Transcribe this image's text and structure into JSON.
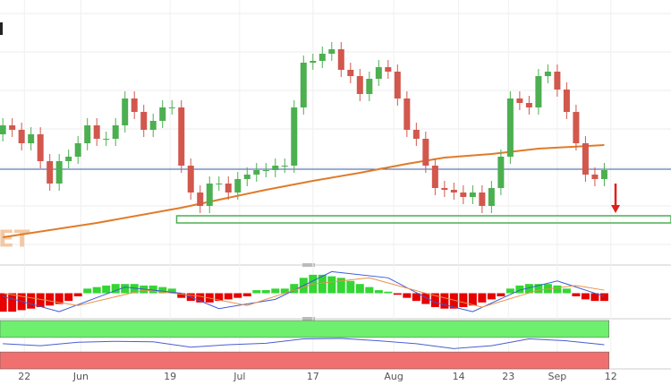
{
  "chart_data": [
    {
      "type": "candlestick",
      "xlim": [
        -0.3,
        71.1
      ],
      "ylim": [
        0,
        280
      ],
      "grid": true,
      "watermark": "ET",
      "candles": {
        "up_color": "#4caf50",
        "down_color": "#d2574d",
        "open": [
          140,
          150,
          145,
          130,
          140,
          110,
          85,
          110,
          115,
          130,
          150,
          135,
          135,
          150,
          180,
          165,
          145,
          155,
          170,
          170,
          105,
          75,
          60,
          85,
          85,
          75,
          90,
          95,
          100,
          100,
          105,
          105,
          170,
          220,
          222,
          230,
          235,
          212,
          205,
          185,
          202,
          215,
          210,
          180,
          145,
          135,
          105,
          80,
          78,
          75,
          70,
          75,
          60,
          80,
          115,
          180,
          175,
          170,
          205,
          210,
          190,
          165,
          130,
          95,
          90
        ],
        "high": [
          158,
          158,
          153,
          148,
          148,
          118,
          118,
          123,
          138,
          158,
          158,
          143,
          158,
          188,
          188,
          173,
          163,
          178,
          178,
          178,
          113,
          83,
          93,
          93,
          93,
          98,
          103,
          108,
          108,
          113,
          113,
          178,
          228,
          230,
          238,
          243,
          243,
          220,
          213,
          210,
          223,
          223,
          218,
          188,
          153,
          143,
          113,
          88,
          86,
          83,
          83,
          83,
          88,
          123,
          188,
          188,
          183,
          213,
          218,
          218,
          198,
          173,
          138,
          103,
          108
        ],
        "low": [
          132,
          137,
          122,
          122,
          102,
          77,
          77,
          102,
          107,
          122,
          127,
          127,
          127,
          142,
          157,
          137,
          137,
          147,
          162,
          97,
          67,
          52,
          52,
          77,
          67,
          67,
          82,
          87,
          92,
          92,
          97,
          97,
          162,
          212,
          214,
          222,
          204,
          197,
          177,
          177,
          194,
          202,
          172,
          137,
          127,
          97,
          72,
          70,
          67,
          62,
          62,
          52,
          52,
          72,
          107,
          167,
          162,
          162,
          197,
          182,
          157,
          122,
          87,
          82,
          82
        ],
        "close": [
          150,
          145,
          130,
          140,
          110,
          85,
          110,
          115,
          130,
          150,
          135,
          135,
          150,
          180,
          165,
          145,
          155,
          170,
          170,
          105,
          75,
          60,
          85,
          85,
          75,
          90,
          95,
          100,
          100,
          105,
          105,
          170,
          220,
          222,
          230,
          235,
          212,
          205,
          185,
          202,
          215,
          210,
          180,
          145,
          135,
          105,
          80,
          78,
          75,
          70,
          75,
          60,
          80,
          115,
          180,
          175,
          170,
          205,
          210,
          190,
          165,
          130,
          95,
          90,
          100
        ]
      },
      "overlays": [
        {
          "type": "line",
          "color": "#e07b2a",
          "x": [
            0,
            10,
            19,
            28,
            33,
            38,
            43,
            47,
            52,
            57,
            64
          ],
          "values": [
            25,
            41,
            58,
            78,
            88,
            97,
            107,
            114,
            118,
            124,
            128
          ]
        }
      ],
      "price_line": {
        "value": 101,
        "color": "#3b5ba5"
      },
      "zone": {
        "start": 18.5,
        "range": [
          41,
          49
        ],
        "color": "#4caf50"
      },
      "arrow": {
        "x": 65.2,
        "from": 85,
        "to": 52,
        "color": "#e0201b"
      },
      "xticks": [
        {
          "value": 2.3,
          "label": "22"
        },
        {
          "value": 8.3,
          "label": "Jun"
        },
        {
          "value": 17.8,
          "label": "19"
        },
        {
          "value": 25.2,
          "label": "Jul"
        },
        {
          "value": 33,
          "label": "17"
        },
        {
          "value": 41.6,
          "label": "Aug"
        },
        {
          "value": 48.5,
          "label": "14"
        },
        {
          "value": 53.8,
          "label": "23"
        },
        {
          "value": 59,
          "label": "Sep"
        },
        {
          "value": 64.7,
          "label": "12"
        }
      ]
    },
    {
      "type": "macd",
      "ylim": [
        -16,
        16
      ],
      "histogram": {
        "up_color": "#33d633",
        "down_color": "#e60000",
        "values": [
          -12,
          -12,
          -11,
          -10,
          -9,
          -8,
          -7,
          -5,
          -2,
          3,
          4,
          5,
          6,
          6,
          6,
          5,
          5,
          4,
          3,
          -3,
          -5,
          -6,
          -6,
          -5,
          -4,
          -3,
          -2,
          2,
          2,
          3,
          3,
          6,
          10,
          12,
          12,
          11,
          10,
          8,
          6,
          4,
          2,
          1,
          -1,
          -3,
          -5,
          -7,
          -9,
          -10,
          -10,
          -9,
          -8,
          -6,
          -4,
          -2,
          3,
          5,
          6,
          6,
          6,
          5,
          3,
          -2,
          -4,
          -5,
          -5
        ]
      },
      "series": [
        {
          "color": "#3b5bd6",
          "x": [
            0,
            6,
            13,
            19,
            23,
            29,
            35,
            41,
            46,
            50,
            55,
            59,
            64
          ],
          "values": [
            -2,
            -12,
            4,
            0,
            -10,
            -4,
            14,
            10,
            -6,
            -12,
            2,
            8,
            -2
          ]
        },
        {
          "color": "#e8924a",
          "x": [
            0,
            8,
            15,
            21,
            26,
            33,
            39,
            45,
            51,
            57,
            61,
            64
          ],
          "values": [
            0,
            -8,
            2,
            -2,
            -8,
            6,
            10,
            0,
            -9,
            2,
            5,
            2
          ]
        }
      ]
    },
    {
      "type": "rsi",
      "ylim": [
        0,
        100
      ],
      "bands": [
        {
          "range": [
            65,
            100
          ],
          "color": "#6ef06e",
          "end": 64.5
        },
        {
          "range": [
            0,
            35
          ],
          "color": "#f07070",
          "end": 64.5
        }
      ],
      "series": [
        {
          "color": "#4a5fd0",
          "x": [
            0,
            4,
            8,
            12,
            16,
            20,
            24,
            28,
            32,
            36,
            40,
            44,
            48,
            52,
            56,
            60,
            64
          ],
          "values": [
            52,
            48,
            55,
            57,
            56,
            45,
            50,
            53,
            62,
            63,
            58,
            52,
            42,
            48,
            62,
            58,
            50
          ]
        }
      ]
    }
  ]
}
